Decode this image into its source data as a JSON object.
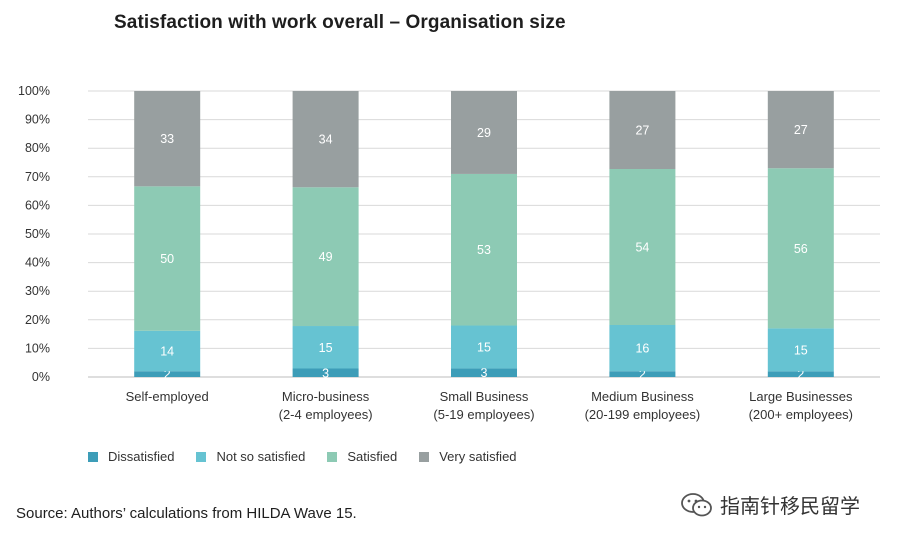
{
  "chart_data": {
    "type": "stacked-bar",
    "title": "Satisfaction with work overall – Organisation size",
    "categories": [
      [
        "Self-employed"
      ],
      [
        "Micro-business",
        "(2-4 employees)"
      ],
      [
        "Small Business",
        "(5-19 employees)"
      ],
      [
        "Medium Business",
        "(20-199 employees)"
      ],
      [
        "Large Businesses",
        "(200+ employees)"
      ]
    ],
    "series": [
      {
        "name": "Dissatisfied",
        "color": "#3d9db8",
        "values": [
          2,
          3,
          3,
          2,
          2
        ]
      },
      {
        "name": "Not so satisfied",
        "color": "#66c3d2",
        "values": [
          14,
          15,
          15,
          16,
          15
        ]
      },
      {
        "name": "Satisfied",
        "color": "#8dcab4",
        "values": [
          50,
          49,
          53,
          54,
          56
        ]
      },
      {
        "name": "Very satisfied",
        "color": "#989fa0",
        "values": [
          33,
          34,
          29,
          27,
          27
        ]
      }
    ],
    "y_ticks": [
      "0%",
      "10%",
      "20%",
      "30%",
      "40%",
      "50%",
      "60%",
      "70%",
      "80%",
      "90%",
      "100%"
    ],
    "ylim": [
      0,
      100
    ],
    "grid": true,
    "legend_position": "bottom-left"
  },
  "source": "Source: Authors’ calculations from HILDA Wave 15.",
  "watermark": "指南针移民留学"
}
